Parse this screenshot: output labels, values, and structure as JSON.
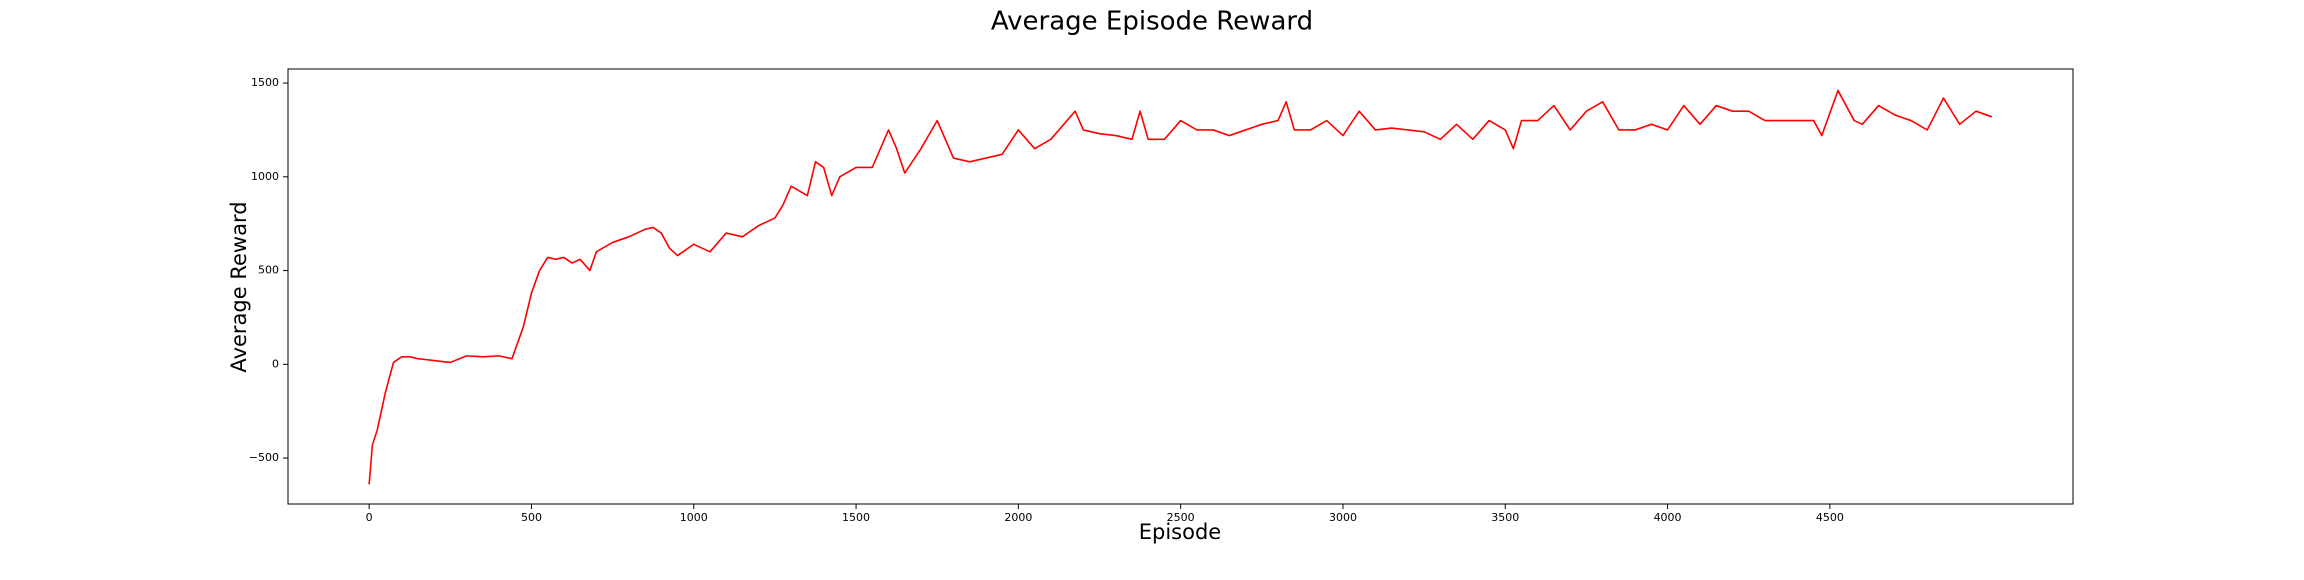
{
  "chart_data": {
    "type": "line",
    "title": "Average Episode Reward",
    "xlabel": "Episode",
    "ylabel": "Average Reward",
    "x": [
      0,
      10,
      25,
      50,
      75,
      100,
      125,
      150,
      175,
      200,
      250,
      300,
      350,
      400,
      440,
      475,
      500,
      525,
      550,
      575,
      600,
      625,
      650,
      680,
      700,
      750,
      800,
      850,
      875,
      900,
      925,
      950,
      1000,
      1050,
      1075,
      1100,
      1150,
      1200,
      1250,
      1275,
      1300,
      1350,
      1375,
      1400,
      1425,
      1450,
      1500,
      1550,
      1575,
      1600,
      1625,
      1650,
      1700,
      1750,
      1775,
      1800,
      1850,
      1900,
      1950,
      2000,
      2050,
      2100,
      2150,
      2175,
      2200,
      2250,
      2300,
      2350,
      2375,
      2400,
      2450,
      2500,
      2550,
      2600,
      2650,
      2700,
      2750,
      2800,
      2825,
      2850,
      2900,
      2950,
      3000,
      3050,
      3100,
      3150,
      3200,
      3250,
      3300,
      3350,
      3400,
      3450,
      3500,
      3525,
      3550,
      3600,
      3650,
      3700,
      3750,
      3800,
      3850,
      3900,
      3950,
      4000,
      4050,
      4100,
      4150,
      4200,
      4250,
      4300,
      4350,
      4400,
      4450,
      4475,
      4525,
      4575,
      4600,
      4650,
      4700,
      4750,
      4800,
      4850,
      4900,
      4950,
      4999
    ],
    "series": [
      {
        "name": "Average Reward",
        "color": "#ff0000",
        "values": [
          -640,
          -430,
          -350,
          -150,
          10,
          40,
          40,
          30,
          25,
          20,
          10,
          45,
          40,
          45,
          30,
          200,
          380,
          500,
          570,
          560,
          570,
          540,
          560,
          500,
          600,
          650,
          680,
          720,
          730,
          700,
          620,
          580,
          640,
          600,
          650,
          700,
          680,
          740,
          780,
          850,
          950,
          900,
          1080,
          1050,
          900,
          1000,
          1050,
          1050,
          1150,
          1250,
          1150,
          1020,
          1150,
          1300,
          1200,
          1100,
          1080,
          1100,
          1120,
          1250,
          1150,
          1200,
          1300,
          1350,
          1250,
          1230,
          1220,
          1200,
          1350,
          1200,
          1200,
          1300,
          1250,
          1250,
          1220,
          1250,
          1280,
          1300,
          1400,
          1250,
          1250,
          1300,
          1220,
          1350,
          1250,
          1260,
          1250,
          1240,
          1200,
          1280,
          1200,
          1300,
          1250,
          1150,
          1300,
          1300,
          1380,
          1250,
          1350,
          1400,
          1250,
          1250,
          1280,
          1250,
          1380,
          1280,
          1380,
          1350,
          1350,
          1300,
          1300,
          1300,
          1300,
          1220,
          1460,
          1300,
          1280,
          1380,
          1330,
          1300,
          1250,
          1420,
          1280,
          1350,
          1320
        ]
      }
    ],
    "xlim": [
      -250,
      5249
    ],
    "ylim": [
      -745,
      1575
    ],
    "xticks": [
      0,
      500,
      1000,
      1500,
      2000,
      2500,
      3000,
      3500,
      4000,
      4500
    ],
    "yticks": [
      {
        "value": -500,
        "label": "−500"
      },
      0,
      500,
      1000,
      1500
    ]
  }
}
